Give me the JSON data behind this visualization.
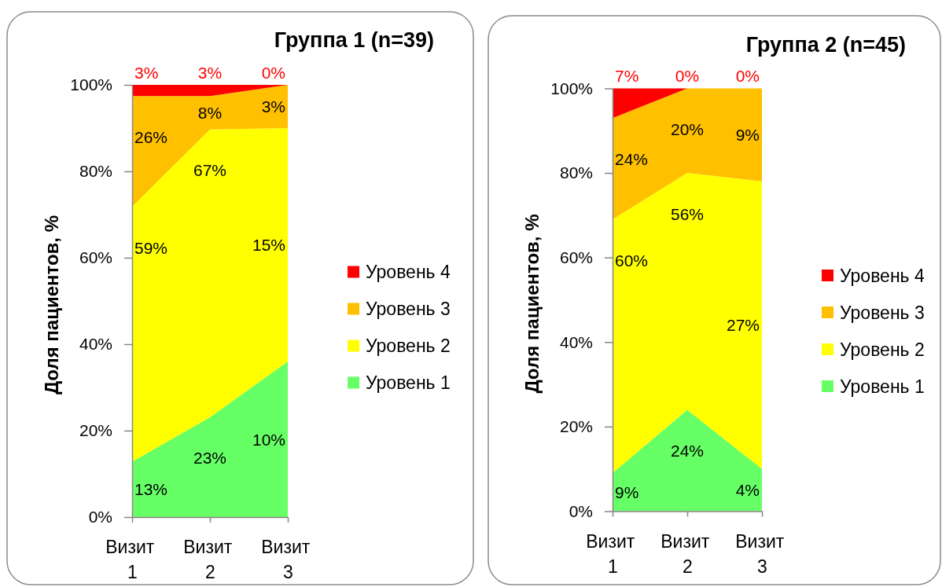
{
  "chart_data": [
    {
      "type": "area",
      "title": "Группа 1 (n=39)",
      "ylabel": "Доля пациентов, %",
      "categories": [
        "Визит 1",
        "Визит 2",
        "Визит 3"
      ],
      "stacked": true,
      "ylim": [
        0,
        100
      ],
      "yticks": [
        {
          "value": 0,
          "label": "0%"
        },
        {
          "value": 20,
          "label": "20%"
        },
        {
          "value": 40,
          "label": "40%"
        },
        {
          "value": 60,
          "label": "60%"
        },
        {
          "value": 80,
          "label": "80%"
        },
        {
          "value": 100,
          "label": "100%"
        }
      ],
      "legend": "right",
      "series": [
        {
          "name": "Уровень 1",
          "color": "#66ff66",
          "values": [
            12.8,
            23.1,
            36
          ],
          "value_labels": [
            "13%",
            "23%",
            null
          ]
        },
        {
          "name": "Уровень 2",
          "color": "#ffff00",
          "values": [
            59,
            66.6,
            54
          ],
          "value_labels": [
            "59%",
            "67%",
            null
          ]
        },
        {
          "name": "Уровень 3",
          "color": "#ffc000",
          "values": [
            25.6,
            7.7,
            10
          ],
          "value_labels": [
            "26%",
            "8%",
            null
          ]
        },
        {
          "name": "Уровень 4",
          "color": "#ff0000",
          "values": [
            2.6,
            2.6,
            0
          ],
          "value_labels": [
            "3%",
            "3%",
            "0%"
          ]
        }
      ],
      "annotations": [
        {
          "text": "10%",
          "x": "Визит 3",
          "y": 18
        },
        {
          "text": "15%",
          "x": "Визит 3",
          "y": 63
        },
        {
          "text": "3%",
          "x": "Визит 3",
          "y": 95
        }
      ]
    },
    {
      "type": "area",
      "title": "Группа 2 (n=45)",
      "ylabel": "Доля пациентов, %",
      "categories": [
        "Визит 1",
        "Визит 2",
        "Визит 3"
      ],
      "stacked": true,
      "ylim": [
        0,
        100
      ],
      "yticks": [
        {
          "value": 0,
          "label": "0%"
        },
        {
          "value": 20,
          "label": "20%"
        },
        {
          "value": 40,
          "label": "40%"
        },
        {
          "value": 60,
          "label": "60%"
        },
        {
          "value": 80,
          "label": "80%"
        },
        {
          "value": 100,
          "label": "100%"
        }
      ],
      "legend": "right",
      "series": [
        {
          "name": "Уровень 1",
          "color": "#66ff66",
          "values": [
            9,
            24,
            10
          ],
          "value_labels": [
            "9%",
            "24%",
            null
          ]
        },
        {
          "name": "Уровень 2",
          "color": "#ffff00",
          "values": [
            60,
            56,
            68
          ],
          "value_labels": [
            "60%",
            "56%",
            null
          ]
        },
        {
          "name": "Уровень 3",
          "color": "#ffc000",
          "values": [
            24,
            20,
            22
          ],
          "value_labels": [
            "24%",
            "20%",
            null
          ]
        },
        {
          "name": "Уровень 4",
          "color": "#ff0000",
          "values": [
            7,
            0,
            0
          ],
          "value_labels": [
            "7%",
            "0%",
            "0%"
          ]
        }
      ],
      "annotations": [
        {
          "text": "4%",
          "x": "Визит 3",
          "y": 5
        },
        {
          "text": "27%",
          "x": "Визит 3",
          "y": 44
        },
        {
          "text": "9%",
          "x": "Визит 3",
          "y": 89
        }
      ]
    }
  ]
}
